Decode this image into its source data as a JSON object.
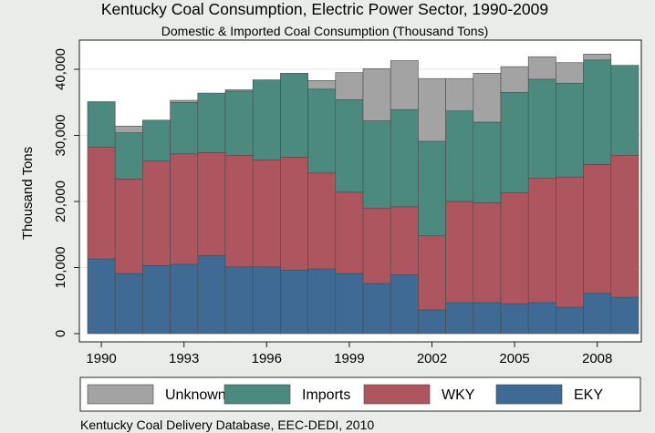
{
  "chart_data": {
    "type": "bar",
    "stacked": true,
    "title": "Kentucky Coal Consumption, Electric Power Sector, 1990-2009",
    "subtitle": "Domestic & Imported Coal Consumption (Thousand Tons)",
    "xlabel": "",
    "ylabel": "Thousand Tons",
    "source": "Kentucky Coal Delivery Database, EEC-DEDI, 2010",
    "ylim": [
      0,
      43000
    ],
    "yticks": [
      0,
      10000,
      20000,
      30000,
      40000
    ],
    "ytick_labels": [
      "0",
      "10,000",
      "20,000",
      "30,000",
      "40,000"
    ],
    "categories": [
      1990,
      1991,
      1992,
      1993,
      1994,
      1995,
      1996,
      1997,
      1998,
      1999,
      2000,
      2001,
      2002,
      2003,
      2004,
      2005,
      2006,
      2007,
      2008,
      2009
    ],
    "xtick_labels": [
      "1990",
      "1993",
      "1996",
      "1999",
      "2002",
      "2005",
      "2008"
    ],
    "legend_position": "bottom",
    "legend_order": [
      "Unknown",
      "Imports",
      "WKY",
      "EKY"
    ],
    "series": [
      {
        "name": "EKY",
        "color": "#3e6a94",
        "values": [
          11300,
          9100,
          10300,
          10500,
          11800,
          10100,
          10100,
          9600,
          9800,
          9100,
          7600,
          8900,
          3600,
          4700,
          4700,
          4500,
          4700,
          4000,
          6100,
          5500
        ]
      },
      {
        "name": "WKY",
        "color": "#ad5660",
        "values": [
          16900,
          14300,
          15800,
          16700,
          15600,
          16900,
          16200,
          17100,
          14500,
          12300,
          11400,
          10300,
          11200,
          15300,
          15100,
          16800,
          18800,
          19700,
          19500,
          21500
        ]
      },
      {
        "name": "Imports",
        "color": "#4c8a80",
        "values": [
          6900,
          7000,
          6200,
          7800,
          9000,
          9700,
          12100,
          12700,
          12700,
          14000,
          13200,
          14700,
          14300,
          13700,
          12200,
          15200,
          15000,
          14200,
          15800,
          13600
        ]
      },
      {
        "name": "Unknown",
        "color": "#a3a3a3",
        "values": [
          0,
          1000,
          0,
          300,
          0,
          200,
          0,
          0,
          1300,
          4100,
          7900,
          7400,
          9500,
          4900,
          7400,
          3900,
          3400,
          3100,
          900,
          0
        ]
      }
    ]
  }
}
